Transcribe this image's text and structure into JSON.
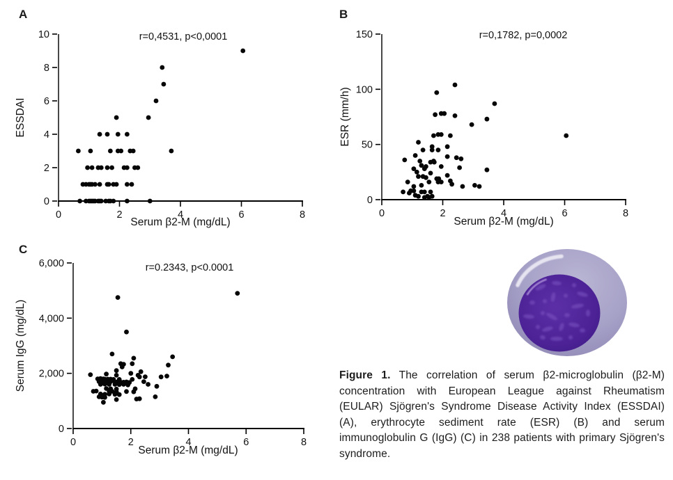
{
  "caption": {
    "label": "Figure 1.",
    "text": " The correlation of serum β2-microglobulin (β2-M) concentration with European League against Rheumatism (EULAR) Sjögren's Syndrome Disease Activity Index (ESSDAI) (A), erythrocyte sediment rate (ESR) (B) and serum immunoglobulin G (IgG) (C) in 238 patients with primary Sjögren's syndrome."
  },
  "illustration": {
    "name": "lymphocyte cell",
    "cytoplasm_color": "#a39ec5",
    "nucleus_color": "#4c2296",
    "highlight_color": "#eceaf4"
  },
  "chart_data": [
    {
      "panel_label": "A",
      "type": "scatter",
      "annotation": "r=0,4531, p<0,0001",
      "xlabel": "Serum β2-M (mg/dL)",
      "ylabel": "ESSDAI",
      "xlim": [
        0,
        8
      ],
      "ylim": [
        0,
        10
      ],
      "xticks": [
        0,
        2,
        4,
        6,
        8
      ],
      "xtick_labels": [
        "0",
        "2",
        "4",
        "6",
        "8"
      ],
      "yticks": [
        0,
        2,
        4,
        6,
        8,
        10
      ],
      "ytick_labels": [
        "0",
        "2",
        "4",
        "6",
        "8",
        "10"
      ],
      "grid": false,
      "points": [
        [
          6.05,
          9
        ],
        [
          3.4,
          8
        ],
        [
          3.45,
          7
        ],
        [
          3.2,
          6
        ],
        [
          1.9,
          5
        ],
        [
          2.95,
          5
        ],
        [
          1.35,
          4
        ],
        [
          1.6,
          4
        ],
        [
          1.95,
          4
        ],
        [
          2.25,
          4
        ],
        [
          0.65,
          3
        ],
        [
          1.05,
          3
        ],
        [
          1.7,
          3
        ],
        [
          1.95,
          3
        ],
        [
          2.05,
          3
        ],
        [
          2.35,
          3
        ],
        [
          2.45,
          3
        ],
        [
          3.7,
          3
        ],
        [
          0.95,
          2
        ],
        [
          1.1,
          2
        ],
        [
          1.3,
          2
        ],
        [
          1.4,
          2
        ],
        [
          1.6,
          2
        ],
        [
          1.75,
          2
        ],
        [
          2.15,
          2
        ],
        [
          2.25,
          2
        ],
        [
          2.5,
          2
        ],
        [
          2.6,
          2
        ],
        [
          0.8,
          1
        ],
        [
          0.9,
          1
        ],
        [
          1.0,
          1
        ],
        [
          1.05,
          1
        ],
        [
          1.1,
          1
        ],
        [
          1.2,
          1
        ],
        [
          1.35,
          1
        ],
        [
          1.6,
          1
        ],
        [
          1.65,
          1
        ],
        [
          1.8,
          1
        ],
        [
          1.9,
          1
        ],
        [
          2.25,
          1
        ],
        [
          2.4,
          1
        ],
        [
          0.7,
          0
        ],
        [
          0.9,
          0
        ],
        [
          1.0,
          0
        ],
        [
          1.05,
          0
        ],
        [
          1.1,
          0
        ],
        [
          1.15,
          0
        ],
        [
          1.2,
          0
        ],
        [
          1.3,
          0
        ],
        [
          1.35,
          0
        ],
        [
          1.4,
          0
        ],
        [
          1.55,
          0
        ],
        [
          1.65,
          0
        ],
        [
          1.7,
          0
        ],
        [
          1.8,
          0
        ],
        [
          2.25,
          0
        ],
        [
          3.0,
          0
        ]
      ]
    },
    {
      "panel_label": "B",
      "type": "scatter",
      "annotation": "r=0,1782, p=0,0002",
      "xlabel": "Serum β2-M (mg/dL)",
      "ylabel": "ESR (mm/h)",
      "xlim": [
        0,
        8
      ],
      "ylim": [
        0,
        150
      ],
      "xticks": [
        0,
        2,
        4,
        6,
        8
      ],
      "xtick_labels": [
        "0",
        "2",
        "4",
        "6",
        "8"
      ],
      "yticks": [
        0,
        50,
        100,
        150
      ],
      "ytick_labels": [
        "0",
        "50",
        "100",
        "150"
      ],
      "grid": false,
      "points": [
        [
          2.4,
          104
        ],
        [
          1.8,
          97
        ],
        [
          3.7,
          87
        ],
        [
          1.75,
          77
        ],
        [
          1.95,
          78
        ],
        [
          2.05,
          78
        ],
        [
          2.4,
          76
        ],
        [
          3.45,
          73
        ],
        [
          2.95,
          68
        ],
        [
          1.7,
          58
        ],
        [
          1.85,
          59
        ],
        [
          1.95,
          59
        ],
        [
          2.25,
          58
        ],
        [
          6.05,
          58
        ],
        [
          1.2,
          52
        ],
        [
          1.65,
          48
        ],
        [
          2.15,
          48
        ],
        [
          1.35,
          45
        ],
        [
          1.65,
          45
        ],
        [
          1.85,
          45
        ],
        [
          1.1,
          40
        ],
        [
          0.75,
          36
        ],
        [
          1.25,
          35
        ],
        [
          1.7,
          35
        ],
        [
          2.15,
          39
        ],
        [
          2.45,
          38
        ],
        [
          2.6,
          37
        ],
        [
          1.6,
          34
        ],
        [
          1.72,
          34
        ],
        [
          1.3,
          31
        ],
        [
          1.45,
          30
        ],
        [
          1.95,
          30
        ],
        [
          2.55,
          29
        ],
        [
          1.4,
          28
        ],
        [
          1.05,
          28
        ],
        [
          3.45,
          27
        ],
        [
          1.15,
          25
        ],
        [
          1.6,
          24
        ],
        [
          2.15,
          22
        ],
        [
          1.2,
          21
        ],
        [
          1.35,
          21
        ],
        [
          1.45,
          20
        ],
        [
          1.8,
          19
        ],
        [
          1.87,
          19
        ],
        [
          0.85,
          16
        ],
        [
          1.55,
          16
        ],
        [
          1.85,
          16
        ],
        [
          1.95,
          16
        ],
        [
          2.25,
          17
        ],
        [
          2.3,
          14
        ],
        [
          3.05,
          13
        ],
        [
          3.2,
          12
        ],
        [
          2.65,
          12
        ],
        [
          1.05,
          12
        ],
        [
          1.3,
          13
        ],
        [
          0.95,
          8
        ],
        [
          1.05,
          8
        ],
        [
          0.7,
          7
        ],
        [
          0.9,
          6
        ],
        [
          1.3,
          7
        ],
        [
          1.4,
          7
        ],
        [
          1.6,
          7
        ],
        [
          1.1,
          4
        ],
        [
          1.2,
          3
        ],
        [
          1.4,
          2
        ],
        [
          1.5,
          3
        ],
        [
          1.55,
          2
        ],
        [
          1.65,
          3
        ]
      ]
    },
    {
      "panel_label": "C",
      "type": "scatter",
      "annotation": "r=0.2343, p<0.0001",
      "xlabel": "Serum β2-M (mg/dL)",
      "ylabel": "Serum IgG (mg/dL)",
      "xlim": [
        0,
        8
      ],
      "ylim": [
        0,
        6000
      ],
      "xticks": [
        0,
        2,
        4,
        6,
        8
      ],
      "xtick_labels": [
        "0",
        "2",
        "4",
        "6",
        "8"
      ],
      "yticks": [
        0,
        2000,
        4000,
        6000
      ],
      "ytick_labels": [
        "0",
        "2,000",
        "4,000",
        "6,000"
      ],
      "grid": false,
      "points": [
        [
          5.7,
          4900
        ],
        [
          1.55,
          4750
        ],
        [
          1.85,
          3500
        ],
        [
          1.35,
          2700
        ],
        [
          3.45,
          2600
        ],
        [
          2.1,
          2550
        ],
        [
          2.05,
          2350
        ],
        [
          1.65,
          2350
        ],
        [
          1.75,
          2330
        ],
        [
          3.3,
          2300
        ],
        [
          2.35,
          2060
        ],
        [
          1.5,
          2100
        ],
        [
          1.7,
          2230
        ],
        [
          2.0,
          2000
        ],
        [
          0.6,
          1950
        ],
        [
          1.15,
          1975
        ],
        [
          1.5,
          1930
        ],
        [
          2.25,
          1930
        ],
        [
          2.3,
          1870
        ],
        [
          3.05,
          1870
        ],
        [
          3.25,
          1900
        ],
        [
          2.5,
          1875
        ],
        [
          0.85,
          1800
        ],
        [
          0.95,
          1810
        ],
        [
          1.05,
          1800
        ],
        [
          1.1,
          1790
        ],
        [
          1.2,
          1790
        ],
        [
          1.3,
          1790
        ],
        [
          1.4,
          1780
        ],
        [
          1.6,
          1780
        ],
        [
          2.05,
          1780
        ],
        [
          0.9,
          1700
        ],
        [
          1.0,
          1710
        ],
        [
          1.1,
          1700
        ],
        [
          1.2,
          1700
        ],
        [
          1.3,
          1700
        ],
        [
          1.45,
          1690
        ],
        [
          1.55,
          1700
        ],
        [
          1.65,
          1680
        ],
        [
          1.75,
          1680
        ],
        [
          1.85,
          1690
        ],
        [
          1.95,
          1670
        ],
        [
          2.45,
          1700
        ],
        [
          0.95,
          1600
        ],
        [
          1.1,
          1610
        ],
        [
          1.25,
          1600
        ],
        [
          1.45,
          1600
        ],
        [
          1.6,
          1590
        ],
        [
          1.75,
          1600
        ],
        [
          1.9,
          1580
        ],
        [
          2.6,
          1600
        ],
        [
          2.9,
          1530
        ],
        [
          1.15,
          1450
        ],
        [
          1.3,
          1440
        ],
        [
          1.5,
          1430
        ],
        [
          2.15,
          1440
        ],
        [
          0.7,
          1350
        ],
        [
          0.8,
          1360
        ],
        [
          1.25,
          1340
        ],
        [
          1.35,
          1350
        ],
        [
          1.5,
          1330
        ],
        [
          1.85,
          1340
        ],
        [
          2.1,
          1330
        ],
        [
          0.95,
          1250
        ],
        [
          1.1,
          1240
        ],
        [
          1.25,
          1250
        ],
        [
          1.45,
          1240
        ],
        [
          1.6,
          1230
        ],
        [
          2.2,
          1070
        ],
        [
          2.3,
          1080
        ],
        [
          2.85,
          1150
        ],
        [
          0.9,
          1150
        ],
        [
          1.0,
          1140
        ],
        [
          1.1,
          1130
        ],
        [
          1.5,
          1050
        ],
        [
          1.05,
          950
        ]
      ]
    }
  ]
}
